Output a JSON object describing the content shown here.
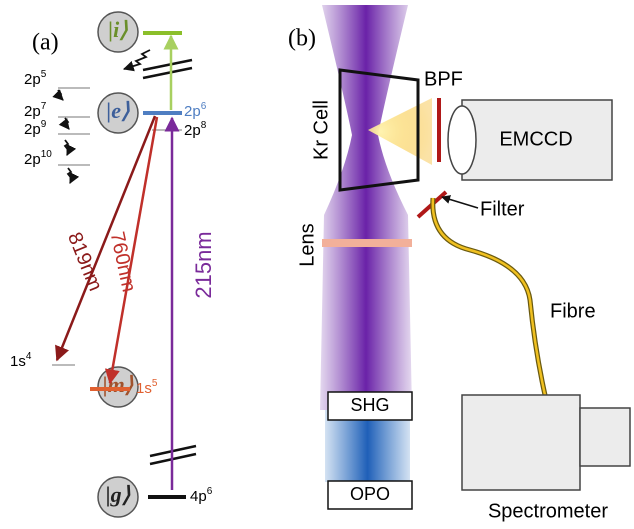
{
  "panel_a": {
    "label": "(a)",
    "states": {
      "i": "|i⟩",
      "e": "|e⟩",
      "m": "|m⟩",
      "g": "|g⟩"
    },
    "levels": [
      {
        "base": "2p",
        "sup": "5"
      },
      {
        "base": "2p",
        "sup": "7"
      },
      {
        "base": "2p",
        "sup": "9"
      },
      {
        "base": "2p",
        "sup": "10"
      },
      {
        "base": "2p",
        "sup": "6"
      },
      {
        "base": "2p",
        "sup": "8"
      },
      {
        "base": "1s",
        "sup": "4"
      },
      {
        "base": "1s",
        "sup": "5"
      },
      {
        "base": "4p",
        "sup": "6"
      }
    ],
    "transitions": [
      "819nm",
      "760nm",
      "215nm"
    ]
  },
  "panel_b": {
    "label": "(b)",
    "bpf": "BPF",
    "camera": "EMCCD",
    "cell": "Kr Cell",
    "filter": "Filter",
    "lens": "Lens",
    "fibre": "Fibre",
    "shg": "SHG",
    "opo": "OPO",
    "spectrometer": "Spectrometer"
  }
}
